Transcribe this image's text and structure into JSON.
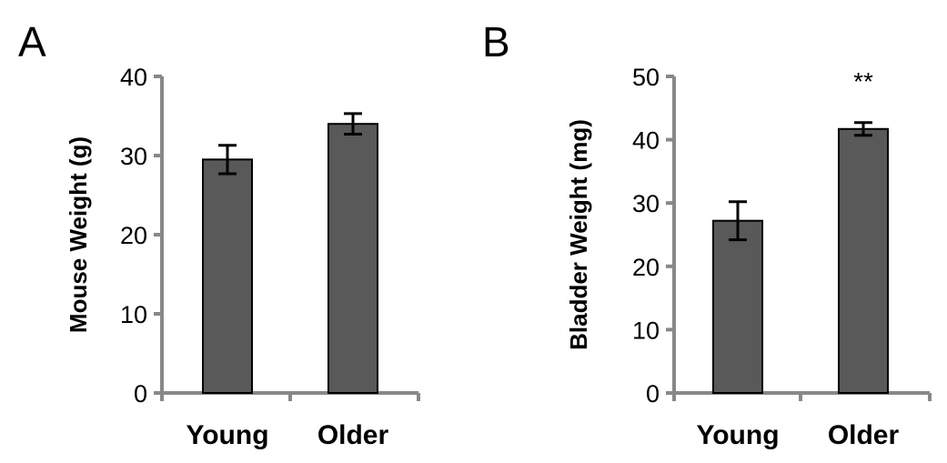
{
  "chart_data": [
    {
      "type": "bar",
      "panel": "A",
      "categories": [
        "Young",
        "Older"
      ],
      "values": [
        29.5,
        34.0
      ],
      "errors": [
        1.8,
        1.3
      ],
      "ylabel": "Mouse Weight (g)",
      "xlabel": "",
      "ylim": [
        0,
        40
      ],
      "yticks": [
        0,
        10,
        20,
        30,
        40
      ],
      "significance": [
        "",
        ""
      ]
    },
    {
      "type": "bar",
      "panel": "B",
      "categories": [
        "Young",
        "Older"
      ],
      "values": [
        27.2,
        41.7
      ],
      "errors": [
        3.0,
        1.0
      ],
      "ylabel": "Bladder  Weight (mg)",
      "xlabel": "",
      "ylim": [
        0,
        50
      ],
      "yticks": [
        0,
        10,
        20,
        30,
        40,
        50
      ],
      "significance": [
        "",
        "**"
      ]
    }
  ],
  "colors": {
    "bar": "#595959",
    "axis": "#888888",
    "error": "#000000"
  }
}
